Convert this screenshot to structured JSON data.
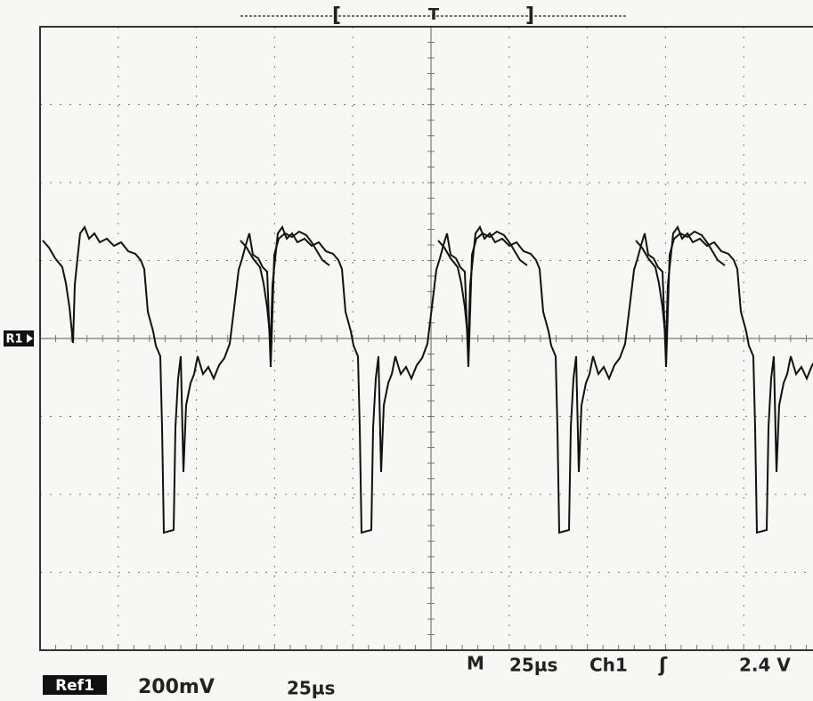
{
  "trigger_marker": {
    "label": "T"
  },
  "reference_marker": {
    "label": "R1"
  },
  "status_bar": {
    "reference": "Ref1",
    "volts_per_div": "200mV",
    "ref_time_per_div": "25µs",
    "mode": "M",
    "time_per_div": "25µs",
    "channel": "Ch1",
    "slope": "ʃ",
    "trigger_level": "2.4 V"
  }
}
